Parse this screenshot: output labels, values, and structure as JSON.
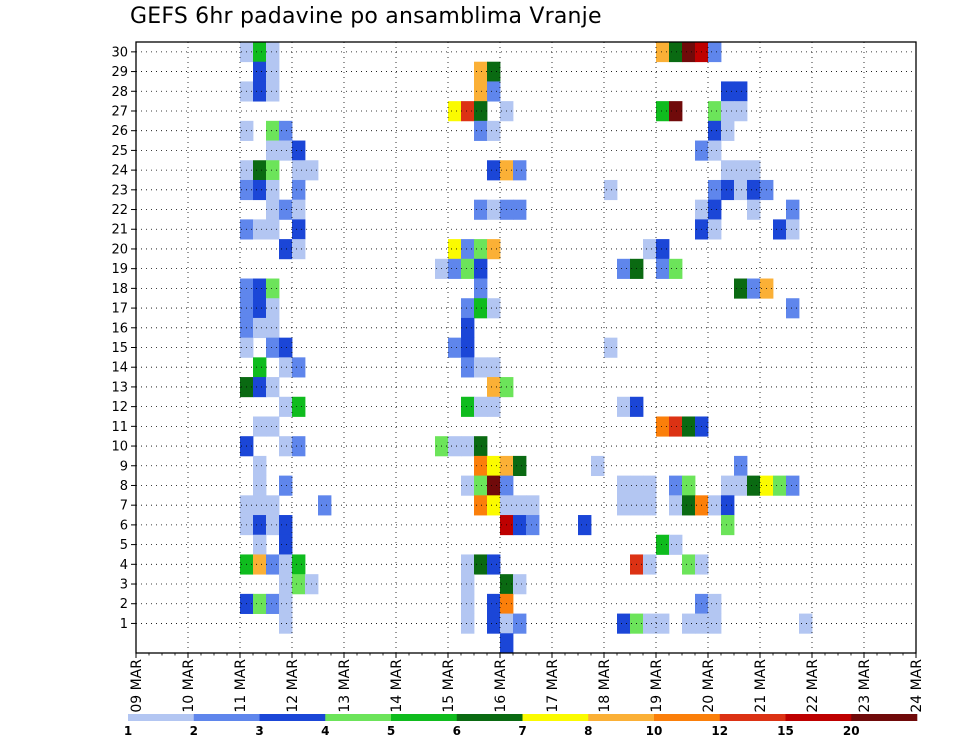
{
  "title": "GEFS 6hr padavine po ansamblima Vranje",
  "chart_data": {
    "type": "heatmap",
    "title": "GEFS 6hr padavine po ansamblima Vranje",
    "xlabel": "",
    "ylabel": "",
    "x_tick_labels": [
      "09 MAR",
      "10 MAR",
      "11 MAR",
      "12 MAR",
      "13 MAR",
      "14 MAR",
      "15 MAR",
      "16 MAR",
      "17 MAR",
      "18 MAR",
      "19 MAR",
      "20 MAR",
      "21 MAR",
      "22 MAR",
      "23 MAR",
      "24 MAR"
    ],
    "x_range": [
      "09 MAR 00Z",
      "24 MAR 00Z"
    ],
    "x_step_hours": 6,
    "y_tick_labels": [
      1,
      2,
      3,
      4,
      5,
      6,
      7,
      8,
      9,
      10,
      11,
      12,
      13,
      14,
      15,
      16,
      17,
      18,
      19,
      20,
      21,
      22,
      23,
      24,
      25,
      26,
      27,
      28,
      29,
      30
    ],
    "y_range": [
      0,
      30
    ],
    "grid": true,
    "grid_style": "dotted",
    "colorbar": {
      "position": "bottom",
      "tick_labels": [
        "1",
        "2",
        "3",
        "4",
        "5",
        "6",
        "7",
        "8",
        "10",
        "12",
        "15",
        "20"
      ],
      "colors": [
        "#b3c6f2",
        "#5f86ec",
        "#1b46d7",
        "#6ce45a",
        "#0fbc1e",
        "#0a6a12",
        "#fbfb00",
        "#fbb036",
        "#fb7f0a",
        "#dc3214",
        "#be0000",
        "#700a0a"
      ]
    },
    "cells": [
      {
        "t": 8,
        "m": 30,
        "l": 1
      },
      {
        "t": 9,
        "m": 30,
        "l": 5
      },
      {
        "t": 10,
        "m": 30,
        "l": 1
      },
      {
        "t": 9,
        "m": 29,
        "l": 3
      },
      {
        "t": 10,
        "m": 29,
        "l": 1
      },
      {
        "t": 8,
        "m": 28,
        "l": 1
      },
      {
        "t": 9,
        "m": 28,
        "l": 3
      },
      {
        "t": 10,
        "m": 28,
        "l": 1
      },
      {
        "t": 8,
        "m": 26,
        "l": 1
      },
      {
        "t": 10,
        "m": 26,
        "l": 4
      },
      {
        "t": 11,
        "m": 26,
        "l": 2
      },
      {
        "t": 10,
        "m": 25,
        "l": 1
      },
      {
        "t": 11,
        "m": 25,
        "l": 1
      },
      {
        "t": 12,
        "m": 25,
        "l": 3
      },
      {
        "t": 8,
        "m": 24,
        "l": 1
      },
      {
        "t": 9,
        "m": 24,
        "l": 6
      },
      {
        "t": 10,
        "m": 24,
        "l": 4
      },
      {
        "t": 12,
        "m": 24,
        "l": 1
      },
      {
        "t": 13,
        "m": 24,
        "l": 1
      },
      {
        "t": 8,
        "m": 23,
        "l": 2
      },
      {
        "t": 9,
        "m": 23,
        "l": 3
      },
      {
        "t": 10,
        "m": 23,
        "l": 1
      },
      {
        "t": 12,
        "m": 23,
        "l": 2
      },
      {
        "t": 10,
        "m": 22,
        "l": 1
      },
      {
        "t": 11,
        "m": 22,
        "l": 2
      },
      {
        "t": 12,
        "m": 22,
        "l": 1
      },
      {
        "t": 8,
        "m": 21,
        "l": 2
      },
      {
        "t": 9,
        "m": 21,
        "l": 1
      },
      {
        "t": 10,
        "m": 21,
        "l": 1
      },
      {
        "t": 12,
        "m": 21,
        "l": 3
      },
      {
        "t": 11,
        "m": 20,
        "l": 3
      },
      {
        "t": 12,
        "m": 20,
        "l": 1
      },
      {
        "t": 8,
        "m": 18,
        "l": 2
      },
      {
        "t": 9,
        "m": 18,
        "l": 3
      },
      {
        "t": 10,
        "m": 18,
        "l": 4
      },
      {
        "t": 8,
        "m": 17,
        "l": 2
      },
      {
        "t": 9,
        "m": 17,
        "l": 3
      },
      {
        "t": 10,
        "m": 17,
        "l": 1
      },
      {
        "t": 8,
        "m": 16,
        "l": 2
      },
      {
        "t": 9,
        "m": 16,
        "l": 1
      },
      {
        "t": 10,
        "m": 16,
        "l": 1
      },
      {
        "t": 8,
        "m": 15,
        "l": 1
      },
      {
        "t": 10,
        "m": 15,
        "l": 2
      },
      {
        "t": 11,
        "m": 15,
        "l": 3
      },
      {
        "t": 9,
        "m": 14,
        "l": 5
      },
      {
        "t": 11,
        "m": 14,
        "l": 1
      },
      {
        "t": 12,
        "m": 14,
        "l": 2
      },
      {
        "t": 8,
        "m": 13,
        "l": 6
      },
      {
        "t": 9,
        "m": 13,
        "l": 3
      },
      {
        "t": 10,
        "m": 13,
        "l": 1
      },
      {
        "t": 11,
        "m": 12,
        "l": 1
      },
      {
        "t": 12,
        "m": 12,
        "l": 5
      },
      {
        "t": 9,
        "m": 11,
        "l": 1
      },
      {
        "t": 10,
        "m": 11,
        "l": 1
      },
      {
        "t": 8,
        "m": 10,
        "l": 3
      },
      {
        "t": 11,
        "m": 10,
        "l": 1
      },
      {
        "t": 12,
        "m": 10,
        "l": 2
      },
      {
        "t": 9,
        "m": 9,
        "l": 1
      },
      {
        "t": 9,
        "m": 8,
        "l": 1
      },
      {
        "t": 11,
        "m": 8,
        "l": 2
      },
      {
        "t": 8,
        "m": 7,
        "l": 1
      },
      {
        "t": 9,
        "m": 7,
        "l": 1
      },
      {
        "t": 10,
        "m": 7,
        "l": 1
      },
      {
        "t": 14,
        "m": 7,
        "l": 2
      },
      {
        "t": 8,
        "m": 6,
        "l": 1
      },
      {
        "t": 9,
        "m": 6,
        "l": 3
      },
      {
        "t": 10,
        "m": 6,
        "l": 1
      },
      {
        "t": 11,
        "m": 6,
        "l": 3
      },
      {
        "t": 9,
        "m": 5,
        "l": 1
      },
      {
        "t": 11,
        "m": 5,
        "l": 3
      },
      {
        "t": 8,
        "m": 4,
        "l": 5
      },
      {
        "t": 9,
        "m": 4,
        "l": 8
      },
      {
        "t": 10,
        "m": 4,
        "l": 2
      },
      {
        "t": 11,
        "m": 4,
        "l": 1
      },
      {
        "t": 12,
        "m": 4,
        "l": 5
      },
      {
        "t": 11,
        "m": 3,
        "l": 1
      },
      {
        "t": 12,
        "m": 3,
        "l": 4
      },
      {
        "t": 13,
        "m": 3,
        "l": 1
      },
      {
        "t": 8,
        "m": 2,
        "l": 3
      },
      {
        "t": 9,
        "m": 2,
        "l": 4
      },
      {
        "t": 10,
        "m": 2,
        "l": 2
      },
      {
        "t": 11,
        "m": 2,
        "l": 1
      },
      {
        "t": 11,
        "m": 1,
        "l": 1
      },
      {
        "t": 26,
        "m": 29,
        "l": 8
      },
      {
        "t": 27,
        "m": 29,
        "l": 6
      },
      {
        "t": 26,
        "m": 28,
        "l": 8
      },
      {
        "t": 27,
        "m": 28,
        "l": 2
      },
      {
        "t": 24,
        "m": 27,
        "l": 7
      },
      {
        "t": 25,
        "m": 27,
        "l": 10
      },
      {
        "t": 26,
        "m": 27,
        "l": 6
      },
      {
        "t": 28,
        "m": 27,
        "l": 1
      },
      {
        "t": 26,
        "m": 26,
        "l": 2
      },
      {
        "t": 27,
        "m": 26,
        "l": 1
      },
      {
        "t": 27,
        "m": 24,
        "l": 3
      },
      {
        "t": 28,
        "m": 24,
        "l": 8
      },
      {
        "t": 29,
        "m": 24,
        "l": 2
      },
      {
        "t": 26,
        "m": 22,
        "l": 2
      },
      {
        "t": 27,
        "m": 22,
        "l": 1
      },
      {
        "t": 28,
        "m": 22,
        "l": 2
      },
      {
        "t": 29,
        "m": 22,
        "l": 2
      },
      {
        "t": 24,
        "m": 20,
        "l": 7
      },
      {
        "t": 25,
        "m": 20,
        "l": 2
      },
      {
        "t": 26,
        "m": 20,
        "l": 4
      },
      {
        "t": 27,
        "m": 20,
        "l": 8
      },
      {
        "t": 23,
        "m": 19,
        "l": 1
      },
      {
        "t": 24,
        "m": 19,
        "l": 2
      },
      {
        "t": 25,
        "m": 19,
        "l": 4
      },
      {
        "t": 26,
        "m": 19,
        "l": 3
      },
      {
        "t": 26,
        "m": 18,
        "l": 2
      },
      {
        "t": 25,
        "m": 17,
        "l": 2
      },
      {
        "t": 26,
        "m": 17,
        "l": 5
      },
      {
        "t": 27,
        "m": 17,
        "l": 1
      },
      {
        "t": 25,
        "m": 16,
        "l": 3
      },
      {
        "t": 24,
        "m": 15,
        "l": 2
      },
      {
        "t": 25,
        "m": 15,
        "l": 3
      },
      {
        "t": 25,
        "m": 14,
        "l": 2
      },
      {
        "t": 26,
        "m": 14,
        "l": 1
      },
      {
        "t": 27,
        "m": 14,
        "l": 1
      },
      {
        "t": 27,
        "m": 13,
        "l": 8
      },
      {
        "t": 28,
        "m": 13,
        "l": 4
      },
      {
        "t": 25,
        "m": 12,
        "l": 5
      },
      {
        "t": 26,
        "m": 12,
        "l": 1
      },
      {
        "t": 27,
        "m": 12,
        "l": 1
      },
      {
        "t": 23,
        "m": 10,
        "l": 4
      },
      {
        "t": 24,
        "m": 10,
        "l": 1
      },
      {
        "t": 25,
        "m": 10,
        "l": 1
      },
      {
        "t": 26,
        "m": 10,
        "l": 6
      },
      {
        "t": 26,
        "m": 9,
        "l": 9
      },
      {
        "t": 27,
        "m": 9,
        "l": 7
      },
      {
        "t": 28,
        "m": 9,
        "l": 8
      },
      {
        "t": 29,
        "m": 9,
        "l": 6
      },
      {
        "t": 25,
        "m": 8,
        "l": 1
      },
      {
        "t": 26,
        "m": 8,
        "l": 4
      },
      {
        "t": 27,
        "m": 8,
        "l": 12
      },
      {
        "t": 28,
        "m": 8,
        "l": 2
      },
      {
        "t": 26,
        "m": 7,
        "l": 9
      },
      {
        "t": 27,
        "m": 7,
        "l": 7
      },
      {
        "t": 28,
        "m": 7,
        "l": 1
      },
      {
        "t": 29,
        "m": 7,
        "l": 1
      },
      {
        "t": 30,
        "m": 7,
        "l": 1
      },
      {
        "t": 28,
        "m": 6,
        "l": 11
      },
      {
        "t": 29,
        "m": 6,
        "l": 3
      },
      {
        "t": 30,
        "m": 6,
        "l": 2
      },
      {
        "t": 25,
        "m": 4,
        "l": 1
      },
      {
        "t": 26,
        "m": 4,
        "l": 6
      },
      {
        "t": 27,
        "m": 4,
        "l": 3
      },
      {
        "t": 25,
        "m": 3,
        "l": 1
      },
      {
        "t": 28,
        "m": 3,
        "l": 6
      },
      {
        "t": 29,
        "m": 3,
        "l": 1
      },
      {
        "t": 25,
        "m": 2,
        "l": 1
      },
      {
        "t": 27,
        "m": 2,
        "l": 3
      },
      {
        "t": 28,
        "m": 2,
        "l": 9
      },
      {
        "t": 25,
        "m": 1,
        "l": 1
      },
      {
        "t": 27,
        "m": 1,
        "l": 3
      },
      {
        "t": 28,
        "m": 1,
        "l": 1
      },
      {
        "t": 29,
        "m": 1,
        "l": 2
      },
      {
        "t": 28,
        "m": 0,
        "l": 3
      },
      {
        "t": 40,
        "m": 30,
        "l": 8
      },
      {
        "t": 41,
        "m": 30,
        "l": 6
      },
      {
        "t": 42,
        "m": 30,
        "l": 12
      },
      {
        "t": 43,
        "m": 30,
        "l": 11
      },
      {
        "t": 44,
        "m": 30,
        "l": 2
      },
      {
        "t": 45,
        "m": 28,
        "l": 3
      },
      {
        "t": 46,
        "m": 28,
        "l": 3
      },
      {
        "t": 40,
        "m": 27,
        "l": 5
      },
      {
        "t": 41,
        "m": 27,
        "l": 12
      },
      {
        "t": 44,
        "m": 27,
        "l": 4
      },
      {
        "t": 45,
        "m": 27,
        "l": 1
      },
      {
        "t": 46,
        "m": 27,
        "l": 1
      },
      {
        "t": 44,
        "m": 26,
        "l": 3
      },
      {
        "t": 45,
        "m": 26,
        "l": 1
      },
      {
        "t": 43,
        "m": 25,
        "l": 2
      },
      {
        "t": 44,
        "m": 25,
        "l": 1
      },
      {
        "t": 45,
        "m": 24,
        "l": 1
      },
      {
        "t": 46,
        "m": 24,
        "l": 1
      },
      {
        "t": 47,
        "m": 24,
        "l": 1
      },
      {
        "t": 36,
        "m": 23,
        "l": 1
      },
      {
        "t": 44,
        "m": 23,
        "l": 2
      },
      {
        "t": 45,
        "m": 23,
        "l": 3
      },
      {
        "t": 46,
        "m": 23,
        "l": 1
      },
      {
        "t": 47,
        "m": 23,
        "l": 3
      },
      {
        "t": 48,
        "m": 23,
        "l": 2
      },
      {
        "t": 43,
        "m": 22,
        "l": 1
      },
      {
        "t": 44,
        "m": 22,
        "l": 3
      },
      {
        "t": 47,
        "m": 22,
        "l": 1
      },
      {
        "t": 50,
        "m": 22,
        "l": 2
      },
      {
        "t": 43,
        "m": 21,
        "l": 3
      },
      {
        "t": 44,
        "m": 21,
        "l": 1
      },
      {
        "t": 49,
        "m": 21,
        "l": 3
      },
      {
        "t": 50,
        "m": 21,
        "l": 1
      },
      {
        "t": 39,
        "m": 20,
        "l": 1
      },
      {
        "t": 40,
        "m": 20,
        "l": 3
      },
      {
        "t": 37,
        "m": 19,
        "l": 2
      },
      {
        "t": 38,
        "m": 19,
        "l": 6
      },
      {
        "t": 40,
        "m": 19,
        "l": 2
      },
      {
        "t": 41,
        "m": 19,
        "l": 4
      },
      {
        "t": 46,
        "m": 18,
        "l": 6
      },
      {
        "t": 47,
        "m": 18,
        "l": 2
      },
      {
        "t": 48,
        "m": 18,
        "l": 8
      },
      {
        "t": 50,
        "m": 17,
        "l": 2
      },
      {
        "t": 36,
        "m": 15,
        "l": 1
      },
      {
        "t": 37,
        "m": 12,
        "l": 1
      },
      {
        "t": 38,
        "m": 12,
        "l": 3
      },
      {
        "t": 40,
        "m": 11,
        "l": 9
      },
      {
        "t": 41,
        "m": 11,
        "l": 10
      },
      {
        "t": 42,
        "m": 11,
        "l": 6
      },
      {
        "t": 43,
        "m": 11,
        "l": 3
      },
      {
        "t": 35,
        "m": 9,
        "l": 1
      },
      {
        "t": 46,
        "m": 9,
        "l": 2
      },
      {
        "t": 37,
        "m": 8,
        "l": 1
      },
      {
        "t": 38,
        "m": 8,
        "l": 1
      },
      {
        "t": 39,
        "m": 8,
        "l": 1
      },
      {
        "t": 41,
        "m": 8,
        "l": 2
      },
      {
        "t": 42,
        "m": 8,
        "l": 4
      },
      {
        "t": 45,
        "m": 8,
        "l": 1
      },
      {
        "t": 46,
        "m": 8,
        "l": 1
      },
      {
        "t": 47,
        "m": 8,
        "l": 6
      },
      {
        "t": 48,
        "m": 8,
        "l": 7
      },
      {
        "t": 49,
        "m": 8,
        "l": 4
      },
      {
        "t": 50,
        "m": 8,
        "l": 2
      },
      {
        "t": 37,
        "m": 7,
        "l": 1
      },
      {
        "t": 38,
        "m": 7,
        "l": 1
      },
      {
        "t": 39,
        "m": 7,
        "l": 1
      },
      {
        "t": 41,
        "m": 7,
        "l": 1
      },
      {
        "t": 42,
        "m": 7,
        "l": 6
      },
      {
        "t": 43,
        "m": 7,
        "l": 9
      },
      {
        "t": 44,
        "m": 7,
        "l": 1
      },
      {
        "t": 45,
        "m": 7,
        "l": 3
      },
      {
        "t": 34,
        "m": 6,
        "l": 3
      },
      {
        "t": 45,
        "m": 6,
        "l": 4
      },
      {
        "t": 40,
        "m": 5,
        "l": 5
      },
      {
        "t": 41,
        "m": 5,
        "l": 1
      },
      {
        "t": 38,
        "m": 4,
        "l": 10
      },
      {
        "t": 39,
        "m": 4,
        "l": 1
      },
      {
        "t": 42,
        "m": 4,
        "l": 4
      },
      {
        "t": 43,
        "m": 4,
        "l": 1
      },
      {
        "t": 43,
        "m": 2,
        "l": 2
      },
      {
        "t": 44,
        "m": 2,
        "l": 1
      },
      {
        "t": 37,
        "m": 1,
        "l": 3
      },
      {
        "t": 38,
        "m": 1,
        "l": 4
      },
      {
        "t": 39,
        "m": 1,
        "l": 1
      },
      {
        "t": 40,
        "m": 1,
        "l": 1
      },
      {
        "t": 42,
        "m": 1,
        "l": 1
      },
      {
        "t": 43,
        "m": 1,
        "l": 1
      },
      {
        "t": 44,
        "m": 1,
        "l": 1
      },
      {
        "t": 51,
        "m": 1,
        "l": 1
      }
    ]
  }
}
